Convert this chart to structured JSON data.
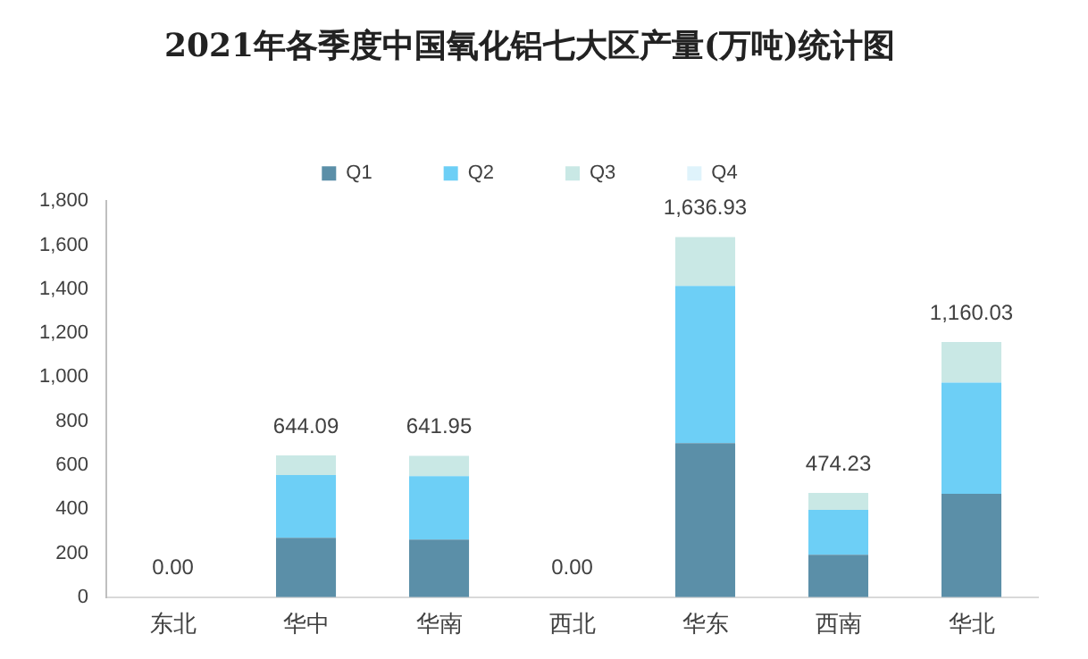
{
  "chart_data": {
    "type": "bar",
    "title": "2021年各季度中国氧化铝七大区产量(万吨)统计图",
    "stacked": true,
    "legend": "top",
    "grid": false,
    "categories": [
      "东北",
      "华中",
      "华南",
      "西北",
      "华东",
      "西南",
      "华北"
    ],
    "series": [
      {
        "name": "Q1",
        "color": "#5b8fa8",
        "values": [
          0,
          270,
          262,
          0,
          700,
          193,
          470
        ]
      },
      {
        "name": "Q2",
        "color": "#6dcff6",
        "values": [
          0,
          285,
          288,
          0,
          714,
          204,
          505
        ]
      },
      {
        "name": "Q3",
        "color": "#c9e8e5",
        "values": [
          0,
          89.09,
          91.95,
          0,
          222.93,
          77.23,
          185.03
        ]
      },
      {
        "name": "Q4",
        "color": "#dff3fb",
        "values": [
          0,
          0,
          0,
          0,
          0,
          0,
          0
        ]
      }
    ],
    "totals": [
      "0.00",
      "644.09",
      "641.95",
      "0.00",
      "1,636.93",
      "474.23",
      "1,160.03"
    ],
    "ylim": [
      0,
      1800
    ],
    "yticks": [
      0,
      200,
      400,
      600,
      800,
      {
        "value": 1000,
        "label": "1,000"
      },
      {
        "value": 1200,
        "label": "1,200"
      },
      {
        "value": 1400,
        "label": "1,400"
      },
      {
        "value": 1600,
        "label": "1,600"
      },
      {
        "value": 1800,
        "label": "1,800"
      }
    ]
  }
}
